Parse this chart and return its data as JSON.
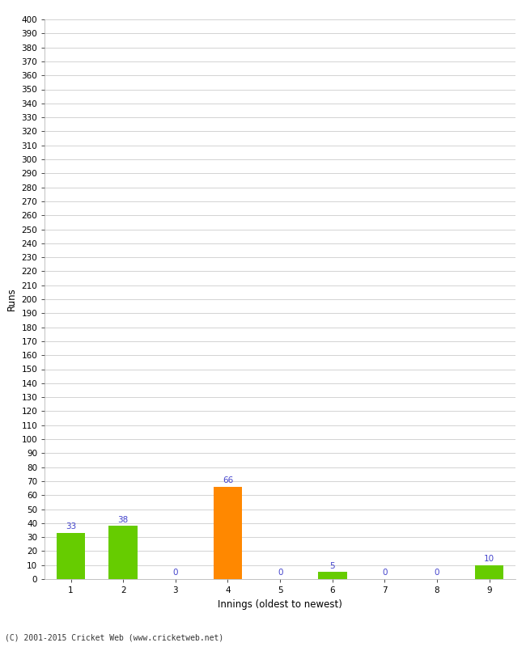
{
  "categories": [
    "1",
    "2",
    "3",
    "4",
    "5",
    "6",
    "7",
    "8",
    "9"
  ],
  "values": [
    33,
    38,
    0,
    66,
    0,
    5,
    0,
    0,
    10
  ],
  "bar_colors": [
    "#66cc00",
    "#66cc00",
    "#66cc00",
    "#ff8800",
    "#66cc00",
    "#66cc00",
    "#66cc00",
    "#66cc00",
    "#66cc00"
  ],
  "xlabel": "Innings (oldest to newest)",
  "ylabel": "Runs",
  "ylim": [
    0,
    400
  ],
  "yticks": [
    0,
    10,
    20,
    30,
    40,
    50,
    60,
    70,
    80,
    90,
    100,
    110,
    120,
    130,
    140,
    150,
    160,
    170,
    180,
    190,
    200,
    210,
    220,
    230,
    240,
    250,
    260,
    270,
    280,
    290,
    300,
    310,
    320,
    330,
    340,
    350,
    360,
    370,
    380,
    390,
    400
  ],
  "label_color": "#4444cc",
  "label_fontsize": 7.5,
  "axis_fontsize": 8.5,
  "tick_fontsize": 7.5,
  "footer": "(C) 2001-2015 Cricket Web (www.cricketweb.net)",
  "background_color": "#ffffff",
  "grid_color": "#cccccc",
  "bar_width": 0.55
}
